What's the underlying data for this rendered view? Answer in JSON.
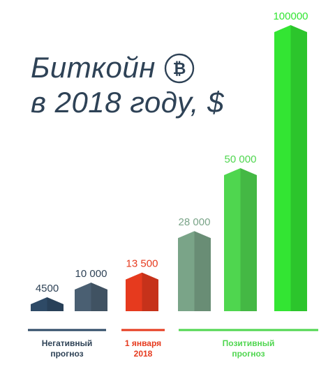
{
  "title": {
    "line1": "Биткойн",
    "line2": "в 2018 году, $"
  },
  "icon": "bitcoin-icon",
  "colors": {
    "title": "#2e4256",
    "negative": "#2e4a66",
    "negative_light": "#4a5f72",
    "current": "#e63a1e",
    "positive_muted": "#7aa488",
    "positive": "#4fd64f",
    "positive_bright": "#33e533"
  },
  "chart_data": {
    "type": "bar",
    "title": "Биткойн в 2018 году, $",
    "categories": [
      "",
      "",
      "",
      "",
      "",
      ""
    ],
    "values": [
      4500,
      10000,
      13500,
      28000,
      50000,
      100000
    ],
    "value_labels": [
      "4500",
      "10 000",
      "13 500",
      "28 000",
      "50 000",
      "100000"
    ],
    "bar_colors": [
      "#2e4a66",
      "#4a5f72",
      "#e63a1e",
      "#7aa488",
      "#4fd64f",
      "#33e533"
    ],
    "label_colors": [
      "#2e4256",
      "#2e4256",
      "#e63a1e",
      "#7aa488",
      "#4fd64f",
      "#33e533"
    ],
    "groups": [
      {
        "label_line1": "Негативный",
        "label_line2": "прогноз",
        "color": "#2e4a66",
        "bars": [
          0,
          1
        ]
      },
      {
        "label_line1": "1 января",
        "label_line2": "2018",
        "color": "#e63a1e",
        "bars": [
          2
        ]
      },
      {
        "label_line1": "Позитивный",
        "label_line2": "прогноз",
        "color": "#4fd64f",
        "bars": [
          3,
          4,
          5
        ]
      }
    ],
    "ylim": [
      0,
      100000
    ],
    "grid": false,
    "xlabel": "",
    "ylabel": ""
  }
}
